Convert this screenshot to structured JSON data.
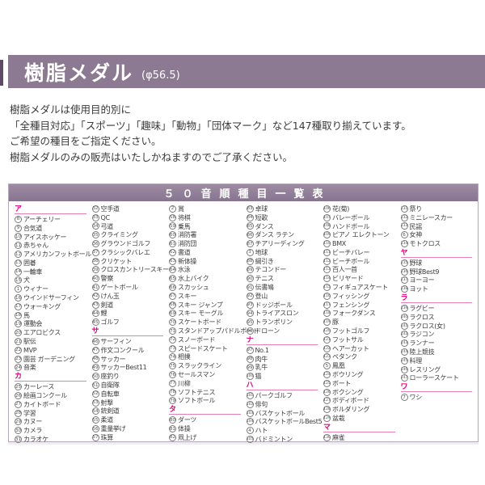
{
  "header": {
    "title": "樹脂メダル",
    "diameter": "(φ56.5)"
  },
  "description": [
    "樹脂メダルは使用目的別に",
    "「全種目対応」「スポーツ」「趣味」「動物」「団体マーク」など147種取り揃えています。",
    "ご希望の種目をご指定ください。",
    "樹脂メダルのみの販売はいたしかねますのでご了承ください。"
  ],
  "colors": {
    "header_bar": "#8c7992",
    "table_header": "#877490",
    "section_pink": "#e4007f",
    "border": "#b5a8bc"
  },
  "table": {
    "title": "５０音順種目一覧表",
    "columns": [
      [
        {
          "s": "ア"
        },
        {
          "n": 8,
          "t": "アーチェリー"
        },
        {
          "n": 9,
          "t": "合気道"
        },
        {
          "n": 10,
          "t": "アイスホッケー"
        },
        {
          "n": 11,
          "t": "赤ちゃん"
        },
        {
          "n": 12,
          "t": "アメリカンフットボール"
        },
        {
          "n": 13,
          "t": "囲碁"
        },
        {
          "n": 14,
          "t": "一輪車"
        },
        {
          "n": 15,
          "t": "犬"
        },
        {
          "n": 1,
          "t": "ウィナー"
        },
        {
          "n": 16,
          "t": "ウインドサーフィン"
        },
        {
          "n": 17,
          "t": "ウォーキング"
        },
        {
          "n": 18,
          "t": "馬"
        },
        {
          "n": 19,
          "t": "運動会"
        },
        {
          "n": 20,
          "t": "エアロビクス"
        },
        {
          "n": 21,
          "t": "駅伝"
        },
        {
          "n": 22,
          "t": "MVP"
        },
        {
          "n": 23,
          "t": "園芸 ガーデニング"
        },
        {
          "n": 24,
          "t": "音楽"
        },
        {
          "s": "カ"
        },
        {
          "n": 25,
          "t": "カーレース"
        },
        {
          "n": 26,
          "t": "絵画コンクール"
        },
        {
          "n": 27,
          "t": "カイトボード"
        },
        {
          "n": 28,
          "t": "学習"
        },
        {
          "n": 29,
          "t": "カヌー"
        },
        {
          "n": 30,
          "t": "カメラ"
        },
        {
          "n": 31,
          "t": "カラオケ"
        }
      ],
      [
        {
          "n": 32,
          "t": "空手道"
        },
        {
          "n": 33,
          "t": "QC"
        },
        {
          "n": 34,
          "t": "弓道"
        },
        {
          "n": 35,
          "t": "クライミング"
        },
        {
          "n": 36,
          "t": "グラウンドゴルフ"
        },
        {
          "n": 37,
          "t": "クラシックバレエ"
        },
        {
          "n": 38,
          "t": "クリケット"
        },
        {
          "n": 39,
          "t": "クロスカントリースキー"
        },
        {
          "n": 40,
          "t": "警察"
        },
        {
          "n": 41,
          "t": "ゲートボール"
        },
        {
          "n": 42,
          "t": "けん玉"
        },
        {
          "n": 43,
          "t": "剣道"
        },
        {
          "n": 44,
          "t": "鯉"
        },
        {
          "n": 45,
          "t": "ゴルフ"
        },
        {
          "s": "サ"
        },
        {
          "n": 46,
          "t": "サーフィン"
        },
        {
          "n": 47,
          "t": "作文コンクール"
        },
        {
          "n": 48,
          "t": "サッカー"
        },
        {
          "n": 49,
          "t": "サッカーBest11"
        },
        {
          "n": 50,
          "t": "座釣り"
        },
        {
          "n": 51,
          "t": "自衛隊"
        },
        {
          "n": 52,
          "t": "自転車"
        },
        {
          "n": 53,
          "t": "射撃"
        },
        {
          "n": 54,
          "t": "銃剣道"
        },
        {
          "n": 55,
          "t": "柔道"
        },
        {
          "n": 56,
          "t": "重量挙げ"
        },
        {
          "n": 57,
          "t": "珠算"
        }
      ],
      [
        {
          "n": 2,
          "t": "賞"
        },
        {
          "n": 58,
          "t": "将棋"
        },
        {
          "n": 59,
          "t": "乗馬"
        },
        {
          "n": 60,
          "t": "消防署"
        },
        {
          "n": 61,
          "t": "消防団"
        },
        {
          "n": 62,
          "t": "書道"
        },
        {
          "n": 63,
          "t": "新体操"
        },
        {
          "n": 64,
          "t": "水泳"
        },
        {
          "n": 65,
          "t": "水上バイク"
        },
        {
          "n": 66,
          "t": "スカッシュ"
        },
        {
          "n": 67,
          "t": "スキー"
        },
        {
          "n": 68,
          "t": "スキー ジャンプ"
        },
        {
          "n": 69,
          "t": "スキー モーグル"
        },
        {
          "n": 70,
          "t": "スケートボード"
        },
        {
          "n": 71,
          "t": "スタンドアップパドルボード"
        },
        {
          "n": 72,
          "t": "スノーボード"
        },
        {
          "n": 73,
          "t": "スピードスケート"
        },
        {
          "n": 74,
          "t": "相撲"
        },
        {
          "n": 75,
          "t": "スラックライン"
        },
        {
          "n": 76,
          "t": "セールスマン"
        },
        {
          "n": 77,
          "t": "川柳"
        },
        {
          "n": 78,
          "t": "ソフトテニス"
        },
        {
          "n": 79,
          "t": "ソフトボール"
        },
        {
          "s": "タ"
        },
        {
          "n": 80,
          "t": "ダーツ"
        },
        {
          "n": 81,
          "t": "体操"
        },
        {
          "n": 82,
          "t": "凧上げ"
        }
      ],
      [
        {
          "n": 83,
          "t": "卓球"
        },
        {
          "n": 84,
          "t": "短歌"
        },
        {
          "n": 85,
          "t": "ダンス"
        },
        {
          "n": 86,
          "t": "ダンス ラテン"
        },
        {
          "n": 87,
          "t": "チアリーディング"
        },
        {
          "n": 3,
          "t": "地球"
        },
        {
          "n": 88,
          "t": "綱引き"
        },
        {
          "n": 89,
          "t": "テコンドー"
        },
        {
          "n": 90,
          "t": "テニス"
        },
        {
          "n": 91,
          "t": "伝書鳩"
        },
        {
          "n": 92,
          "t": "登山"
        },
        {
          "n": 93,
          "t": "ドッジボール"
        },
        {
          "n": 94,
          "t": "トライアスロン"
        },
        {
          "n": 95,
          "t": "トランポリン"
        },
        {
          "n": 96,
          "t": "ドローン"
        },
        {
          "s": "ナ"
        },
        {
          "n": 97,
          "t": "No.1"
        },
        {
          "n": 98,
          "t": "肉牛"
        },
        {
          "n": 99,
          "t": "乳牛"
        },
        {
          "n": 100,
          "t": "猫"
        },
        {
          "s": "ハ"
        },
        {
          "n": 101,
          "t": "パークゴルフ"
        },
        {
          "n": 102,
          "t": "俳句"
        },
        {
          "n": 103,
          "t": "バスケットボール"
        },
        {
          "n": 104,
          "t": "バスケットボールBest5"
        },
        {
          "n": 4,
          "t": "ハト"
        },
        {
          "n": 105,
          "t": "バドミントン"
        }
      ],
      [
        {
          "n": 106,
          "t": "花(菊)"
        },
        {
          "n": 107,
          "t": "バレーボール"
        },
        {
          "n": 108,
          "t": "ハンドボール"
        },
        {
          "n": 109,
          "t": "ピアノ エレクトーン"
        },
        {
          "n": 110,
          "t": "BMX"
        },
        {
          "n": 111,
          "t": "ビーチバレー"
        },
        {
          "n": 112,
          "t": "ビーチボール"
        },
        {
          "n": 113,
          "t": "百人一首"
        },
        {
          "n": 114,
          "t": "ビリヤード"
        },
        {
          "n": 115,
          "t": "フィギュアスケート"
        },
        {
          "n": 116,
          "t": "フィッシング"
        },
        {
          "n": 117,
          "t": "フェンシング"
        },
        {
          "n": 118,
          "t": "フォークダンス"
        },
        {
          "n": 119,
          "t": "豚"
        },
        {
          "n": 120,
          "t": "フットゴルフ"
        },
        {
          "n": 121,
          "t": "フットサル"
        },
        {
          "n": 122,
          "t": "ヘアーカット"
        },
        {
          "n": 123,
          "t": "ペタンク"
        },
        {
          "n": 5,
          "t": "鳳凰"
        },
        {
          "n": 124,
          "t": "ボウリング"
        },
        {
          "n": 125,
          "t": "ボート"
        },
        {
          "n": 126,
          "t": "ボクシング"
        },
        {
          "n": 127,
          "t": "ボディボード"
        },
        {
          "n": 128,
          "t": "ボルダリング"
        },
        {
          "n": 129,
          "t": "盆栽"
        },
        {
          "s": "マ"
        },
        {
          "n": 130,
          "t": "麻雀"
        }
      ],
      [
        {
          "n": 131,
          "t": "祭り"
        },
        {
          "n": 132,
          "t": "ミニレースカー"
        },
        {
          "n": 133,
          "t": "民謡"
        },
        {
          "n": 6,
          "t": "女神"
        },
        {
          "n": 134,
          "t": "モトクロス"
        },
        {
          "s": "ヤ"
        },
        {
          "n": 135,
          "t": "野球"
        },
        {
          "n": 136,
          "t": "野球Best9"
        },
        {
          "n": 137,
          "t": "ヨーヨー"
        },
        {
          "n": 138,
          "t": "ヨット"
        },
        {
          "s": "ラ"
        },
        {
          "n": 139,
          "t": "ラグビー"
        },
        {
          "n": 140,
          "t": "ラクロス"
        },
        {
          "n": 141,
          "t": "ラクロス(女)"
        },
        {
          "n": 142,
          "t": "ラジコン"
        },
        {
          "n": 143,
          "t": "ランナー"
        },
        {
          "n": 144,
          "t": "陸上競技"
        },
        {
          "n": 145,
          "t": "料理"
        },
        {
          "n": 146,
          "t": "レスリング"
        },
        {
          "n": 147,
          "t": "ローラースケート"
        },
        {
          "s": "ワ"
        },
        {
          "n": 7,
          "t": "ワシ"
        }
      ]
    ]
  }
}
